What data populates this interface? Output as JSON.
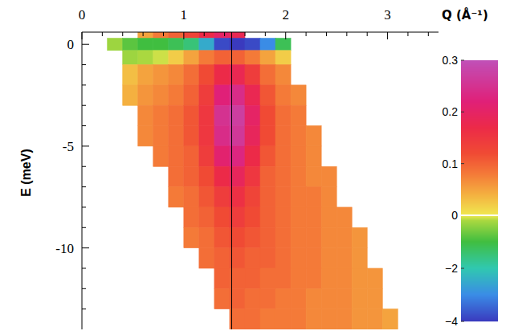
{
  "chart_data": {
    "type": "heatmap",
    "x_label": "Q (Å⁻¹)",
    "y_label": "E (meV)",
    "xlim": [
      0,
      3.5
    ],
    "xticks": [
      0,
      1,
      2,
      3
    ],
    "xticks_minor": [
      0.2,
      0.4,
      0.6,
      0.8,
      1.2,
      1.4,
      1.6,
      1.8,
      2.2,
      2.4,
      2.6,
      2.8,
      3.2,
      3.4
    ],
    "ylim": [
      -14,
      0.6
    ],
    "yticks": [
      0,
      -5,
      -10
    ],
    "yticks_minor": [
      -1,
      -2,
      -3,
      -4,
      -6,
      -7,
      -8,
      -9,
      -11,
      -12,
      -13
    ],
    "vline": 1.47,
    "q_edges": [
      0.25,
      0.4,
      0.55,
      0.7,
      0.85,
      1.0,
      1.15,
      1.3,
      1.45,
      1.6,
      1.75,
      1.9,
      2.05,
      2.2,
      2.35,
      2.5,
      2.65,
      2.8,
      2.95,
      3.1
    ],
    "e_edges": [
      0.6,
      0.3,
      -0.3,
      -1,
      -2,
      -3,
      -4,
      -5,
      -6,
      -7,
      -8,
      -9,
      -10,
      -11,
      -12,
      -13,
      -14
    ],
    "cells": [
      [
        null,
        null,
        0.05,
        0.08,
        0.1,
        0.13,
        0.17,
        0.2,
        0.18,
        null,
        null,
        null,
        null,
        null,
        null,
        null,
        null,
        null,
        null
      ],
      [
        -0.3,
        -0.8,
        -1,
        -1,
        -1.2,
        -1.5,
        -2.5,
        -3.8,
        -4,
        -3.8,
        -3,
        -1.2,
        null,
        null,
        null,
        null,
        null,
        null,
        null
      ],
      [
        null,
        -0.3,
        -0.2,
        -0.1,
        0.02,
        0.05,
        0.08,
        0.1,
        0.1,
        0.08,
        0.05,
        0.02,
        null,
        null,
        null,
        null,
        null,
        null,
        null
      ],
      [
        null,
        0.03,
        0.05,
        0.06,
        0.07,
        0.09,
        0.12,
        0.17,
        0.18,
        0.14,
        0.09,
        0.07,
        null,
        null,
        null,
        null,
        null,
        null,
        null
      ],
      [
        null,
        0.04,
        0.06,
        0.07,
        0.08,
        0.1,
        0.14,
        0.22,
        0.24,
        0.18,
        0.11,
        0.08,
        0.07,
        null,
        null,
        null,
        null,
        null,
        null
      ],
      [
        null,
        null,
        0.07,
        0.08,
        0.09,
        0.11,
        0.15,
        0.25,
        0.27,
        0.2,
        0.12,
        0.09,
        0.08,
        null,
        null,
        null,
        null,
        null,
        null
      ],
      [
        null,
        null,
        0.07,
        0.08,
        0.09,
        0.11,
        0.15,
        0.24,
        0.26,
        0.19,
        0.12,
        0.09,
        0.08,
        0.07,
        null,
        null,
        null,
        null,
        null
      ],
      [
        null,
        null,
        null,
        0.08,
        0.09,
        0.1,
        0.14,
        0.21,
        0.23,
        0.17,
        0.11,
        0.09,
        0.08,
        0.07,
        null,
        null,
        null,
        null,
        null
      ],
      [
        null,
        null,
        null,
        null,
        0.09,
        0.1,
        0.12,
        0.17,
        0.19,
        0.15,
        0.1,
        0.09,
        0.08,
        0.07,
        0.07,
        null,
        null,
        null,
        null
      ],
      [
        null,
        null,
        null,
        null,
        0.08,
        0.09,
        0.11,
        0.14,
        0.16,
        0.13,
        0.1,
        0.09,
        0.08,
        0.08,
        0.07,
        null,
        null,
        null,
        null
      ],
      [
        null,
        null,
        null,
        null,
        null,
        0.09,
        0.1,
        0.12,
        0.14,
        0.12,
        0.1,
        0.09,
        0.08,
        0.08,
        0.07,
        0.07,
        null,
        null,
        null
      ],
      [
        null,
        null,
        null,
        null,
        null,
        0.08,
        0.09,
        0.11,
        0.12,
        0.11,
        0.1,
        0.09,
        0.08,
        0.08,
        0.07,
        0.07,
        0.06,
        null,
        null
      ],
      [
        null,
        null,
        null,
        null,
        null,
        null,
        0.09,
        0.1,
        0.11,
        0.1,
        0.1,
        0.09,
        0.08,
        0.08,
        0.07,
        0.07,
        0.06,
        null,
        null
      ],
      [
        null,
        null,
        null,
        null,
        null,
        null,
        null,
        0.1,
        0.1,
        0.1,
        0.09,
        0.09,
        0.08,
        0.08,
        0.07,
        0.07,
        0.06,
        0.06,
        null
      ],
      [
        null,
        null,
        null,
        null,
        null,
        null,
        null,
        0.09,
        0.1,
        0.09,
        0.09,
        0.08,
        0.08,
        0.07,
        0.07,
        0.07,
        0.06,
        0.06,
        null
      ],
      [
        null,
        null,
        null,
        null,
        null,
        null,
        null,
        null,
        0.09,
        0.09,
        0.08,
        0.08,
        0.08,
        0.07,
        0.07,
        0.07,
        0.06,
        0.06,
        0.05
      ]
    ],
    "colorbar": {
      "range": [
        -4,
        0.3
      ],
      "ticks": [
        0.3,
        0.2,
        0.1,
        0,
        {
          "value": -2,
          "label": "−2"
        },
        {
          "value": -4,
          "label": "−4"
        }
      ]
    }
  }
}
